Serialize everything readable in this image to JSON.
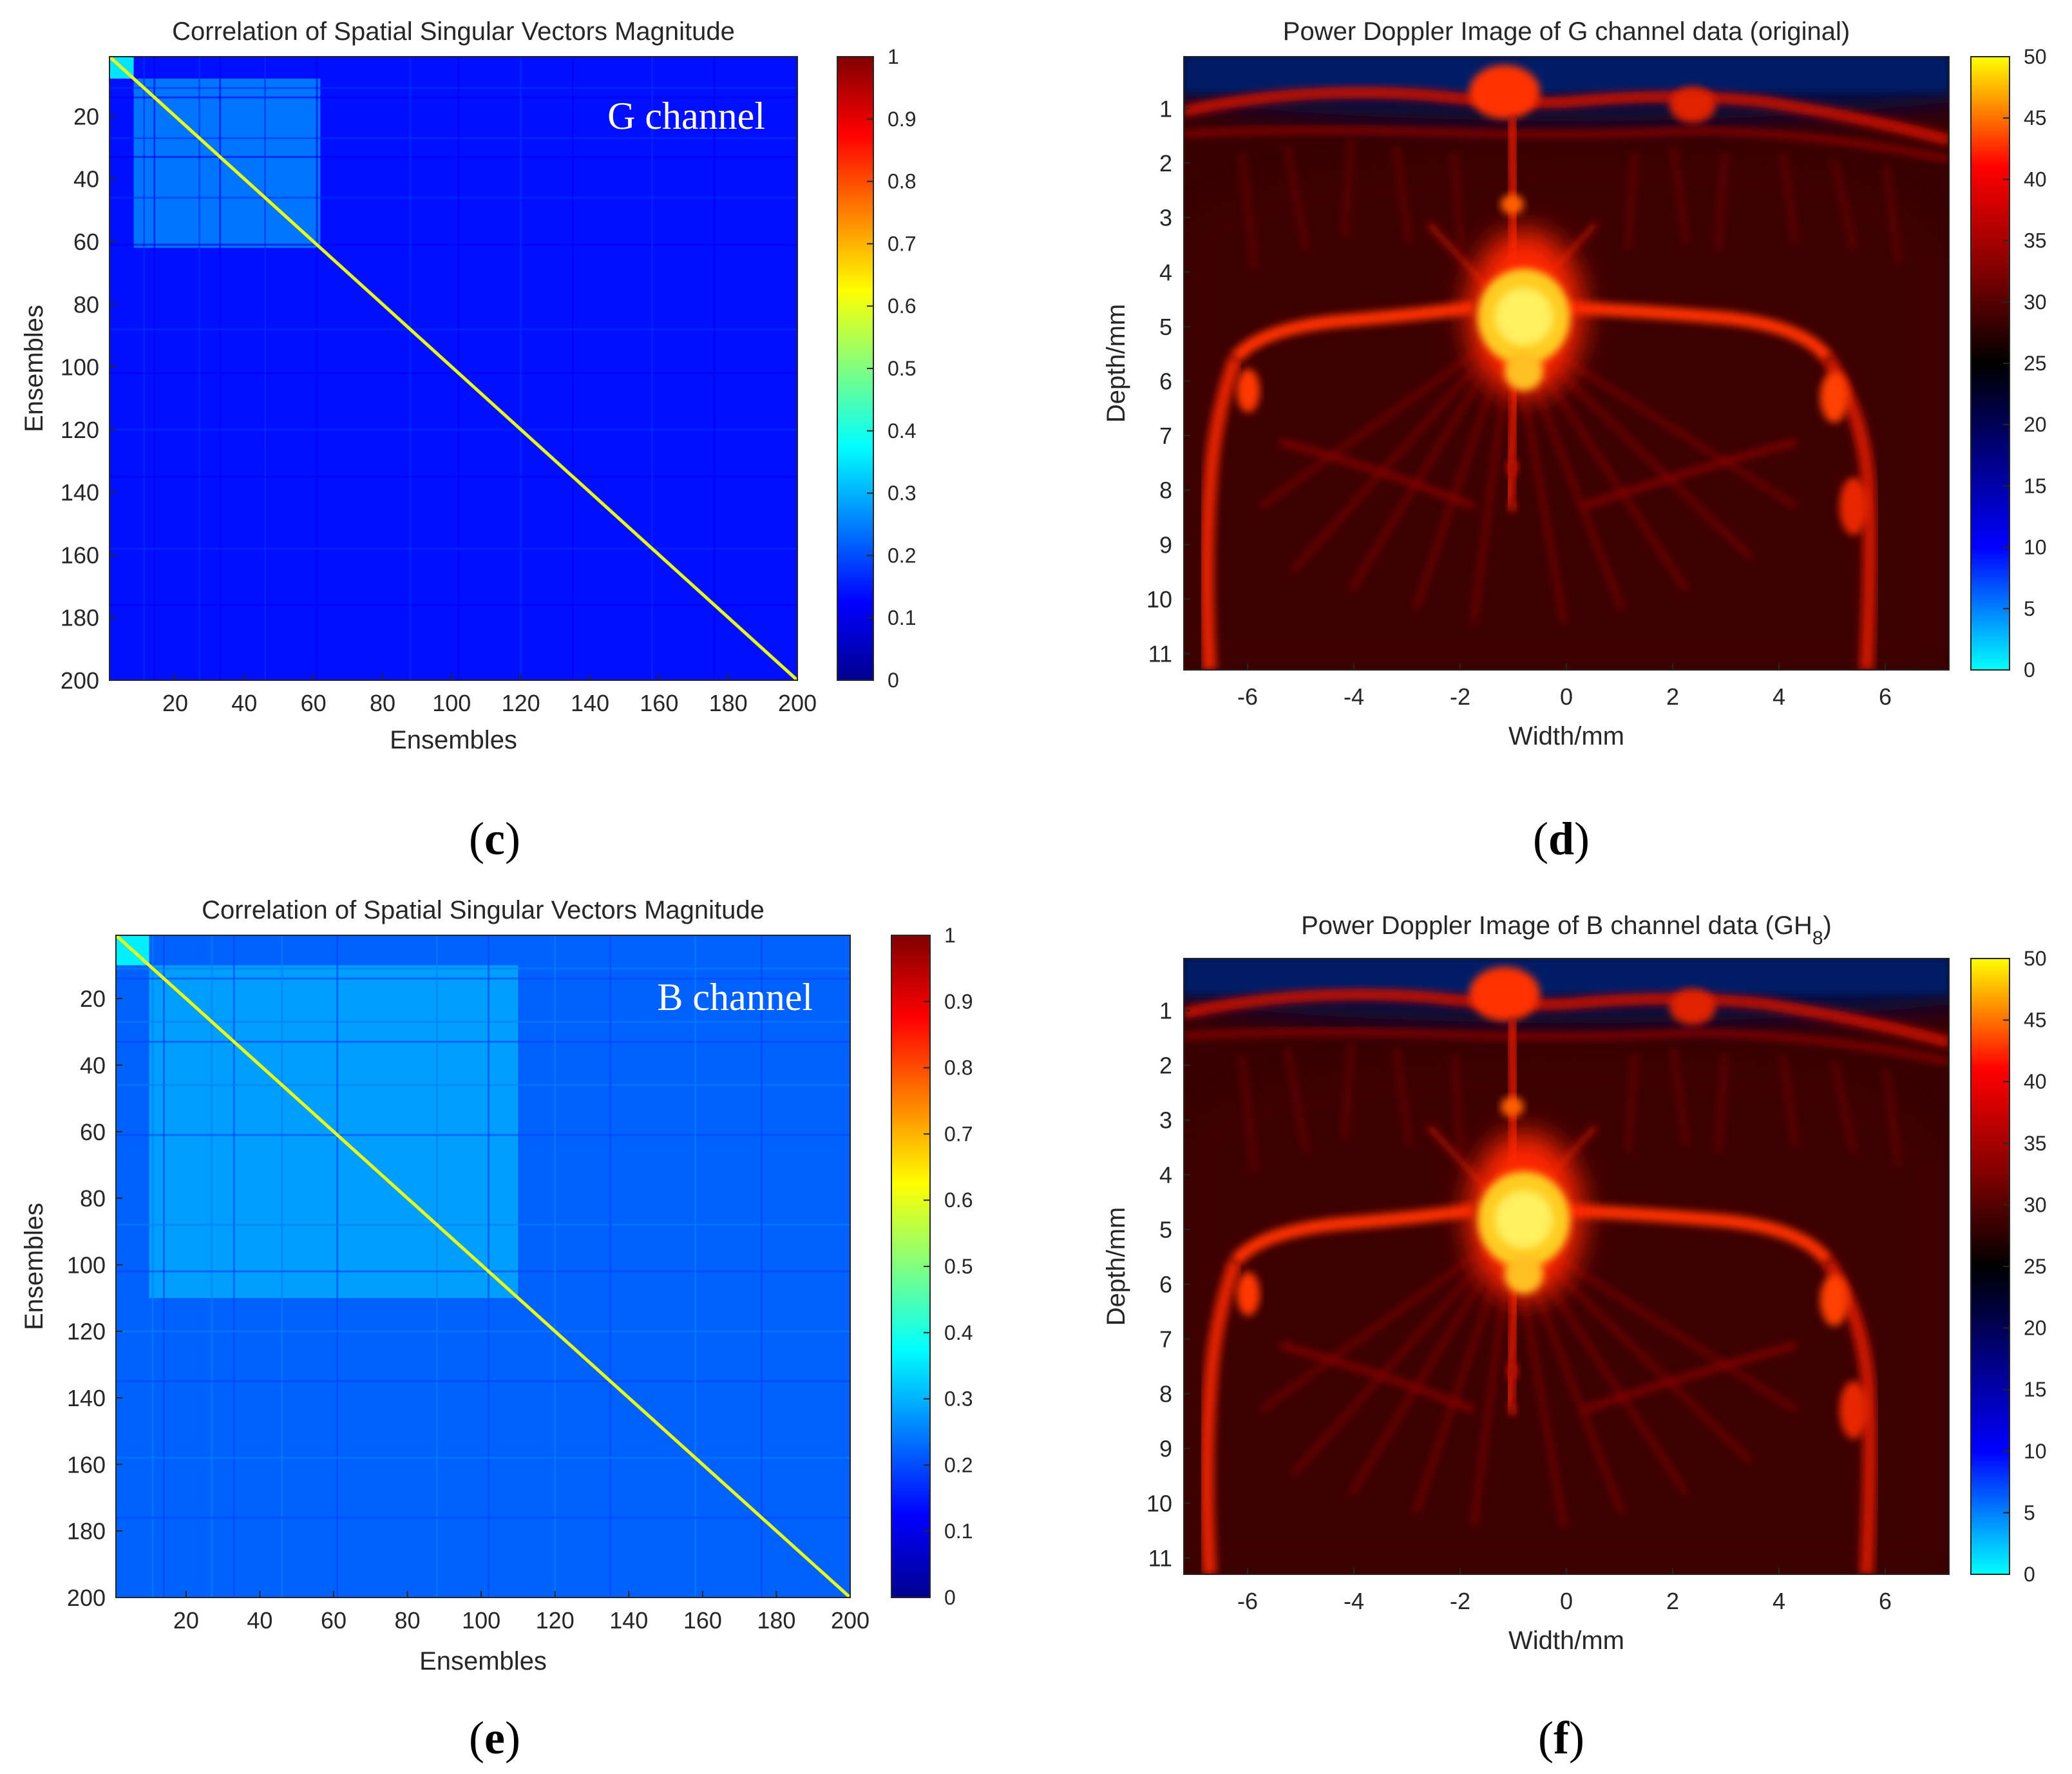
{
  "figure": {
    "panels": [
      {
        "label_open": "(",
        "label_letter": "c",
        "label_close": ")"
      },
      {
        "label_open": "(",
        "label_letter": "d",
        "label_close": ")"
      },
      {
        "label_open": "(",
        "label_letter": "e",
        "label_close": ")"
      },
      {
        "label_open": "(",
        "label_letter": "f",
        "label_close": ")"
      }
    ]
  },
  "colors": {
    "jet": [
      "#00008f",
      "#0000ff",
      "#00ffff",
      "#ffff00",
      "#ff0000",
      "#800000"
    ],
    "hot_diverging": [
      "#00ffff",
      "#0000ff",
      "#000000",
      "#800000",
      "#ff0000",
      "#ffff00"
    ]
  },
  "chart_data": [
    {
      "type": "heatmap",
      "title": "Correlation of Spatial Singular Vectors Magnitude",
      "annotation": "G channel",
      "xlabel": "Ensembles",
      "ylabel": "Ensembles",
      "x_range": [
        1,
        200
      ],
      "y_range": [
        1,
        200
      ],
      "x_ticks": [
        "20",
        "40",
        "60",
        "80",
        "100",
        "120",
        "140",
        "160",
        "180",
        "200"
      ],
      "y_ticks": [
        "20",
        "40",
        "60",
        "80",
        "100",
        "120",
        "140",
        "160",
        "180",
        "200"
      ],
      "colorbar_range": [
        0,
        1
      ],
      "colorbar_ticks": [
        "0",
        "0.1",
        "0.2",
        "0.3",
        "0.4",
        "0.5",
        "0.6",
        "0.7",
        "0.8",
        "0.9",
        "1"
      ],
      "colormap": "jet",
      "diagonal_value": 0.6,
      "background_value": 0.14,
      "blocks": [
        {
          "from": 1,
          "to": 8,
          "value": 0.35
        },
        {
          "from": 8,
          "to": 62,
          "value": 0.24
        }
      ]
    },
    {
      "type": "heatmap",
      "title": "Power Doppler Image of G channel data (original)",
      "title_sub": "",
      "title_end": "",
      "xlabel": "Width/mm",
      "ylabel": "Depth/mm",
      "x_range": [
        -7.2,
        7.2
      ],
      "y_range": [
        0.05,
        11.3
      ],
      "x_ticks": [
        "-6",
        "-4",
        "-2",
        "0",
        "2",
        "4",
        "6"
      ],
      "y_ticks": [
        "1",
        "2",
        "3",
        "4",
        "5",
        "6",
        "7",
        "8",
        "9",
        "10",
        "11"
      ],
      "colorbar_range": [
        0,
        50
      ],
      "colorbar_ticks": [
        "0",
        "5",
        "10",
        "15",
        "20",
        "25",
        "30",
        "35",
        "40",
        "45",
        "50"
      ],
      "colormap": "hot_diverging"
    },
    {
      "type": "heatmap",
      "title": "Correlation of Spatial Singular Vectors Magnitude",
      "annotation": "B channel",
      "xlabel": "Ensembles",
      "ylabel": "Ensembles",
      "x_range": [
        1,
        200
      ],
      "y_range": [
        1,
        200
      ],
      "x_ticks": [
        "20",
        "40",
        "60",
        "80",
        "100",
        "120",
        "140",
        "160",
        "180",
        "200"
      ],
      "y_ticks": [
        "20",
        "40",
        "60",
        "80",
        "100",
        "120",
        "140",
        "160",
        "180",
        "200"
      ],
      "colorbar_range": [
        0,
        1
      ],
      "colorbar_ticks": [
        "0",
        "0.1",
        "0.2",
        "0.3",
        "0.4",
        "0.5",
        "0.6",
        "0.7",
        "0.8",
        "0.9",
        "1"
      ],
      "colormap": "jet",
      "diagonal_value": 0.6,
      "background_value": 0.22,
      "blocks": [
        {
          "from": 1,
          "to": 10,
          "value": 0.36
        },
        {
          "from": 10,
          "to": 110,
          "value": 0.28
        }
      ]
    },
    {
      "type": "heatmap",
      "title": "Power Doppler Image of B channel data (GH",
      "title_sub": "8",
      "title_end": ")",
      "xlabel": "Width/mm",
      "ylabel": "Depth/mm",
      "x_range": [
        -7.2,
        7.2
      ],
      "y_range": [
        0.05,
        11.3
      ],
      "x_ticks": [
        "-6",
        "-4",
        "-2",
        "0",
        "2",
        "4",
        "6"
      ],
      "y_ticks": [
        "1",
        "2",
        "3",
        "4",
        "5",
        "6",
        "7",
        "8",
        "9",
        "10",
        "11"
      ],
      "colorbar_range": [
        0,
        50
      ],
      "colorbar_ticks": [
        "0",
        "5",
        "10",
        "15",
        "20",
        "25",
        "30",
        "35",
        "40",
        "45",
        "50"
      ],
      "colormap": "hot_diverging"
    }
  ]
}
